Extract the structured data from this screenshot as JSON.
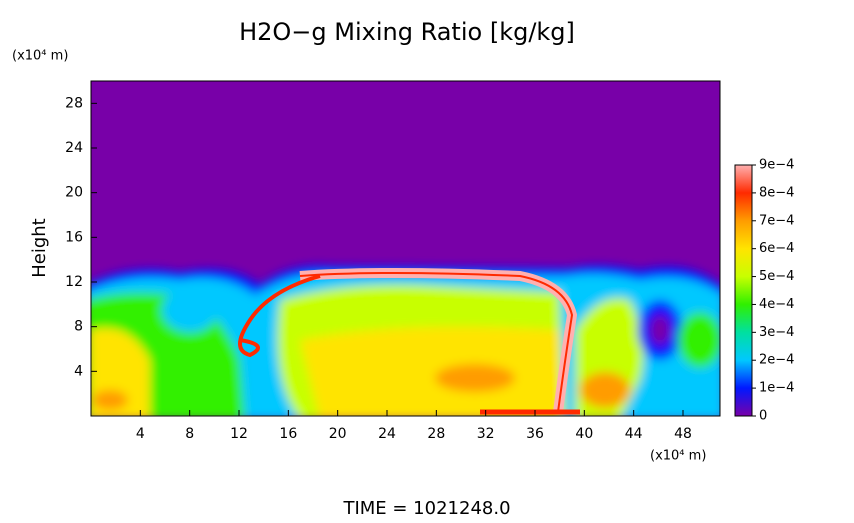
{
  "chart_data": {
    "type": "heatmap",
    "title": "H2O−g Mixing Ratio [kg/kg]",
    "y_label": "Height",
    "x_unit": "(x10⁴ m)",
    "y_unit": "(x10⁴ m)",
    "annotation": "TIME = 1021248.0",
    "xlim": [
      0,
      51
    ],
    "ylim": [
      0,
      30
    ],
    "xticks": [
      4,
      8,
      12,
      16,
      20,
      24,
      28,
      32,
      36,
      40,
      44,
      48
    ],
    "yticks": [
      4,
      8,
      12,
      16,
      20,
      24,
      28
    ],
    "clim": [
      0,
      0.0009
    ],
    "cticks": [
      0,
      {
        "value": 0.0001,
        "label": "1e−4"
      },
      {
        "value": 0.0002,
        "label": "2e−4"
      },
      {
        "value": 0.0003,
        "label": "3e−4"
      },
      {
        "value": 0.0004,
        "label": "4e−4"
      },
      {
        "value": 0.0005,
        "label": "5e−4"
      },
      {
        "value": 0.0006,
        "label": "6e−4"
      },
      {
        "value": 0.0007,
        "label": "7e−4"
      },
      {
        "value": 0.0008,
        "label": "8e−4"
      },
      {
        "value": 0.0009,
        "label": "9e−4"
      }
    ],
    "colormap": [
      "#7800a8",
      "#0018ff",
      "#00c8ff",
      "#00e0a0",
      "#30f000",
      "#c8ff00",
      "#ffe400",
      "#ff9c00",
      "#ff2a00",
      "#ffb0b0"
    ]
  }
}
